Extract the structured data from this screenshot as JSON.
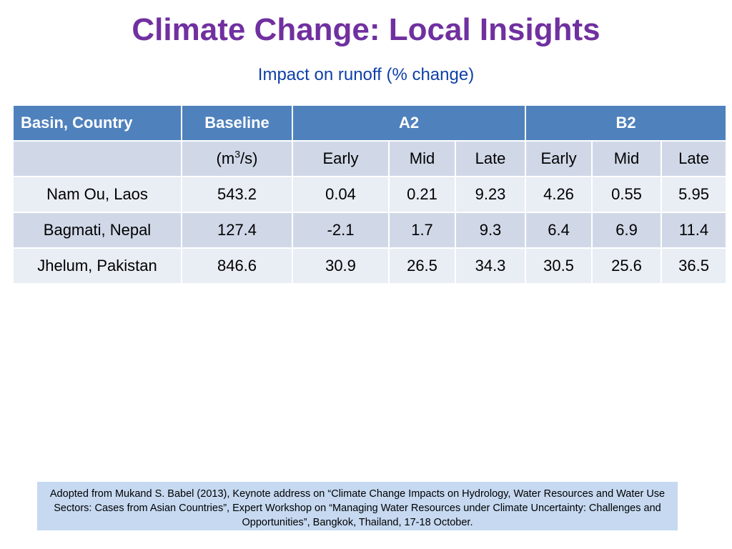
{
  "slide": {
    "title": "Climate Change: Local Insights",
    "subtitle": "Impact on runoff (% change)"
  },
  "table": {
    "header": {
      "basin": "Basin, Country",
      "baseline": "Baseline",
      "a2": "A2",
      "b2": "B2"
    },
    "subheader": {
      "basin": "",
      "units_prefix": "(m",
      "units_sup": "3",
      "units_suffix": "/s)",
      "periods": [
        "Early",
        "Mid",
        "Late",
        "Early",
        "Mid",
        "Late"
      ]
    },
    "rows": [
      {
        "basin": "Nam Ou, Laos",
        "baseline": "543.2",
        "values": [
          "0.04",
          "0.21",
          "9.23",
          "4.26",
          "0.55",
          "5.95"
        ]
      },
      {
        "basin": "Bagmati, Nepal",
        "baseline": "127.4",
        "values": [
          "-2.1",
          "1.7",
          "9.3",
          "6.4",
          "6.9",
          "11.4"
        ]
      },
      {
        "basin": "Jhelum, Pakistan",
        "baseline": "846.6",
        "values": [
          "30.9",
          "26.5",
          "34.3",
          "30.5",
          "25.6",
          "36.5"
        ]
      }
    ]
  },
  "citation": {
    "text": "Adopted from Mukand S. Babel (2013), Keynote address on “Climate Change Impacts on Hydrology, Water Resources and Water Use Sectors: Cases from Asian Countries”, Expert Workshop on “Managing Water Resources under Climate Uncertainty: Challenges and Opportunities”, Bangkok, Thailand, 17-18 October."
  },
  "colors": {
    "title": "#7030a0",
    "subtitle": "#0f3fa8",
    "header_bg": "#4f81bd",
    "row_dark": "#d0d8e8",
    "row_light": "#e9edf4",
    "citation_bg": "#c6d9f1"
  }
}
